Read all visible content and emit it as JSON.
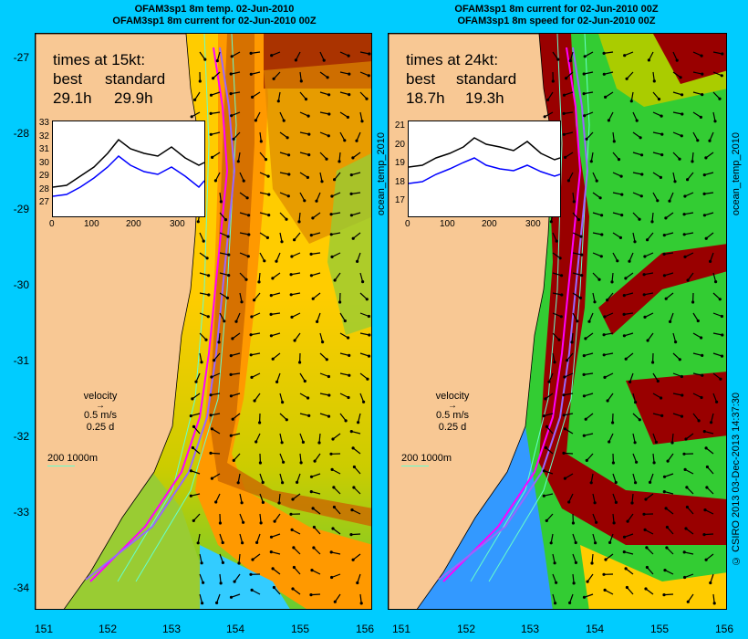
{
  "titles": {
    "left_line1": "OFAM3sp1 8m temp. 02-Jun-2010",
    "left_line2": "OFAM3sp1 8m current for 02-Jun-2010 00Z",
    "right_line1": "OFAM3sp1 8m current for 02-Jun-2010 00Z",
    "right_line2": "OFAM3sp1 8m speed for 02-Jun-2010 00Z"
  },
  "left_panel": {
    "times_heading": "times at 15kt:",
    "best_label": "best",
    "standard_label": "standard",
    "best_value": "29.1h",
    "standard_value": "29.9h",
    "inset": {
      "y_ticks": [
        "33",
        "32",
        "31",
        "30",
        "29",
        "28",
        "27"
      ],
      "x_ticks": [
        "0",
        "100",
        "200",
        "300"
      ],
      "best_series_color": "#000000",
      "standard_series_color": "#0000ff"
    }
  },
  "right_panel": {
    "times_heading": "times at 24kt:",
    "best_label": "best",
    "standard_label": "standard",
    "best_value": "18.7h",
    "standard_value": "19.3h",
    "inset": {
      "y_ticks": [
        "21",
        "20",
        "19",
        "18",
        "17"
      ],
      "x_ticks": [
        "0",
        "100",
        "200",
        "300"
      ]
    }
  },
  "legend": {
    "velocity_label": "velocity",
    "speed_scale": "0.5 m/s",
    "time_scale": "0.25 d",
    "depth_label": "200  1000m"
  },
  "lat_ticks": [
    "-27",
    "-28",
    "-29",
    "-30",
    "-31",
    "-32",
    "-33",
    "-34"
  ],
  "lon_ticks": [
    "151",
    "152",
    "153",
    "154",
    "155",
    "156"
  ],
  "side_labels": {
    "left_axis": "ocean_temp_2010",
    "right_axis_top": "ocean_temp_2010",
    "right_axis_bottom": "© CSIRO 2013  03-Dec-2013 14:37:30"
  },
  "colors": {
    "land": "#f8c894",
    "track_best": "#ff00ff",
    "track_standard": "#9966ff",
    "depth_contour": "#66ffcc",
    "background": "#00ccff"
  }
}
